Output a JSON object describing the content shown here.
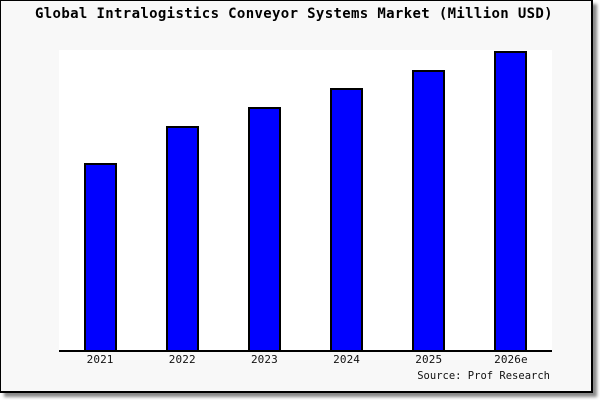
{
  "window": {
    "background_color": "#f8f8f8",
    "plot_background_color": "#ffffff",
    "frame_border_color": "#000000",
    "shadow_color": "#8a8a8a"
  },
  "chart_data": {
    "type": "bar",
    "title": "Global Intralogistics Conveyor Systems Market (Million USD)",
    "categories": [
      "2021",
      "2022",
      "2023",
      "2024",
      "2025",
      "2026e"
    ],
    "values": [
      188,
      225,
      244,
      263,
      281,
      300
    ],
    "value_note": "y-axis unlabeled; values estimated from bar pixel heights (relative units)",
    "unit": "Million USD",
    "xlabel": "",
    "ylabel": "",
    "ylim": [
      0,
      301
    ],
    "grid": false,
    "legend": false,
    "y_axis_visible": false,
    "bar_color": "#0000ff",
    "bar_border_color": "#000000",
    "source": "Source: Prof Research"
  }
}
